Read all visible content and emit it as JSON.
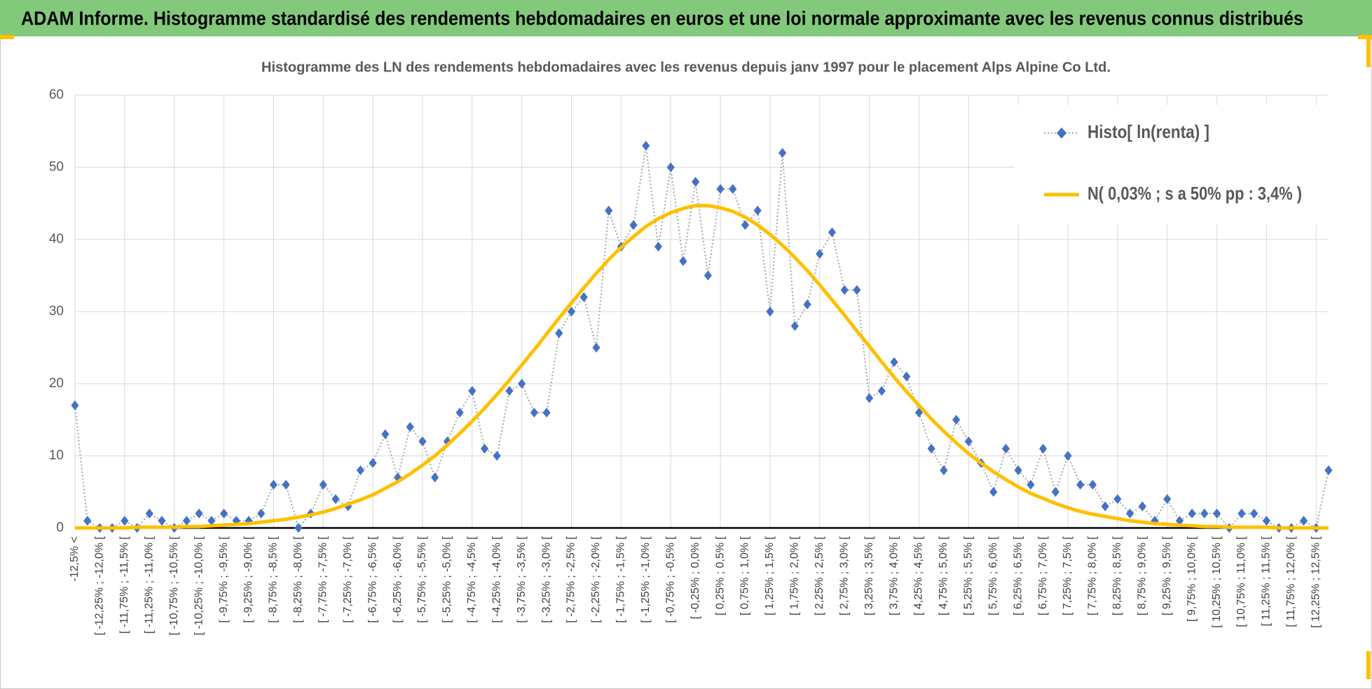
{
  "header": {
    "title": "ADAM Informe. Histogramme standardisé des rendements hebdomadaires en euros et une loi normale approximante avec les revenus connus distribués"
  },
  "chart_data": {
    "type": "line",
    "title": "Histogramme des LN des rendements hebdomadaires avec les revenus depuis janv 1997 pour le placement Alps Alpine Co Ltd.",
    "categories": [
      "-12,5% <",
      null,
      "[ -12,25% ; -12,0% [",
      null,
      "[ -11,75% ; -11,5% [",
      null,
      "[ -11,25% ; -11,0% [",
      null,
      "[ -10,75% ; -10,5% [",
      null,
      "[ -10,25% ; -10,0% [",
      null,
      "[ -9,75% ; -9,5% [",
      null,
      "[ -9,25% ; -9,0% [",
      null,
      "[ -8,75% ; -8,5% [",
      null,
      "[ -8,25% ; -8,0% [",
      null,
      "[ -7,75% ; -7,5% [",
      null,
      "[ -7,25% ; -7,0% [",
      null,
      "[ -6,75% ; -6,5% [",
      null,
      "[ -6,25% ; -6,0% [",
      null,
      "[ -5,75% ; -5,5% [",
      null,
      "[ -5,25% ; -5,0% [",
      null,
      "[ -4,75% ; -4,5% [",
      null,
      "[ -4,25% ; -4,0% [",
      null,
      "[ -3,75% ; -3,5% [",
      null,
      "[ -3,25% ; -3,0% [",
      null,
      "[ -2,75% ; -2,5% [",
      null,
      "[ -2,25% ; -2,0% [",
      null,
      "[ -1,75% ; -1,5% [",
      null,
      "[ -1,25% ; -1,0% [",
      null,
      "[ -0,75% ; -0,5% [",
      null,
      "[ -0,25% ; 0,0% [",
      null,
      "[ 0,25% ; 0,5% [",
      null,
      "[ 0,75% ; 1,0% [",
      null,
      "[ 1,25% ; 1,5% [",
      null,
      "[ 1,75% ; 2,0% [",
      null,
      "[ 2,25% ; 2,5% [",
      null,
      "[ 2,75% ; 3,0% [",
      null,
      "[ 3,25% ; 3,5% [",
      null,
      "[ 3,75% ; 4,0% [",
      null,
      "[ 4,25% ; 4,5% [",
      null,
      "[ 4,75% ; 5,0% [",
      null,
      "[ 5,25% ; 5,5% [",
      null,
      "[ 5,75% ; 6,0% [",
      null,
      "[ 6,25% ; 6,5% [",
      null,
      "[ 6,75% ; 7,0% [",
      null,
      "[ 7,25% ; 7,5% [",
      null,
      "[ 7,75% ; 8,0% [",
      null,
      "[ 8,25% ; 8,5% [",
      null,
      "[ 8,75% ; 9,0% [",
      null,
      "[ 9,25% ; 9,5% [",
      null,
      "[ 9,75% ; 10,0% [",
      null,
      "[ 10,25% ; 10,5% [",
      null,
      "[ 10,75% ; 11,0% [",
      null,
      "[ 11,25% ; 11,5% [",
      null,
      "[ 11,75% ; 12,0% [",
      null,
      "[ 12,25% ; 12,5% [",
      null
    ],
    "series": [
      {
        "name": "Histo[ ln(renta) ]",
        "color": "#4472c4",
        "line_color": "#a6a6a6",
        "marker": "diamond",
        "values": [
          17,
          1,
          0,
          0,
          1,
          0,
          2,
          1,
          0,
          1,
          2,
          1,
          2,
          1,
          1,
          2,
          6,
          6,
          0,
          2,
          6,
          4,
          3,
          8,
          9,
          13,
          7,
          14,
          12,
          7,
          12,
          16,
          19,
          11,
          10,
          19,
          20,
          16,
          16,
          27,
          30,
          32,
          25,
          44,
          39,
          42,
          53,
          39,
          50,
          37,
          48,
          35,
          47,
          47,
          42,
          44,
          30,
          52,
          28,
          31,
          38,
          41,
          33,
          33,
          18,
          19,
          23,
          21,
          16,
          11,
          8,
          15,
          12,
          9,
          5,
          11,
          8,
          6,
          11,
          5,
          10,
          6,
          6,
          3,
          4,
          2,
          3,
          1,
          4,
          1,
          2,
          2,
          2,
          0,
          2,
          2,
          1,
          0,
          0,
          1,
          0,
          8
        ]
      },
      {
        "name": "N( 0,03% ; s a 50% pp : 3,4% )",
        "color": "#ffc000",
        "values": [
          0.0,
          0.0,
          0.0,
          0.0,
          0.0,
          0.1,
          0.1,
          0.1,
          0.1,
          0.2,
          0.2,
          0.3,
          0.4,
          0.5,
          0.6,
          0.8,
          1.0,
          1.2,
          1.5,
          1.8,
          2.2,
          2.7,
          3.3,
          3.9,
          4.6,
          5.5,
          6.4,
          7.5,
          8.7,
          10.0,
          11.5,
          13.1,
          14.8,
          16.6,
          18.5,
          20.5,
          22.6,
          24.7,
          26.9,
          29.1,
          31.2,
          33.3,
          35.3,
          37.2,
          38.9,
          40.4,
          41.8,
          42.9,
          43.7,
          44.3,
          44.7,
          44.7,
          44.4,
          43.9,
          43.1,
          42.0,
          40.7,
          39.2,
          37.5,
          35.7,
          33.7,
          31.6,
          29.5,
          27.3,
          25.2,
          23.0,
          20.9,
          18.9,
          17.0,
          15.1,
          13.4,
          11.8,
          10.3,
          9.0,
          7.8,
          6.7,
          5.7,
          4.8,
          4.1,
          3.4,
          2.8,
          2.3,
          1.9,
          1.6,
          1.3,
          1.0,
          0.8,
          0.6,
          0.5,
          0.4,
          0.3,
          0.2,
          0.2,
          0.1,
          0.1,
          0.1,
          0.1,
          0.0,
          0.0,
          0.0,
          0.0,
          0.0
        ]
      }
    ],
    "ylim": [
      0,
      60
    ],
    "yticks": [
      0,
      10,
      20,
      30,
      40,
      50,
      60
    ],
    "grid": true,
    "legend": "top-right"
  }
}
